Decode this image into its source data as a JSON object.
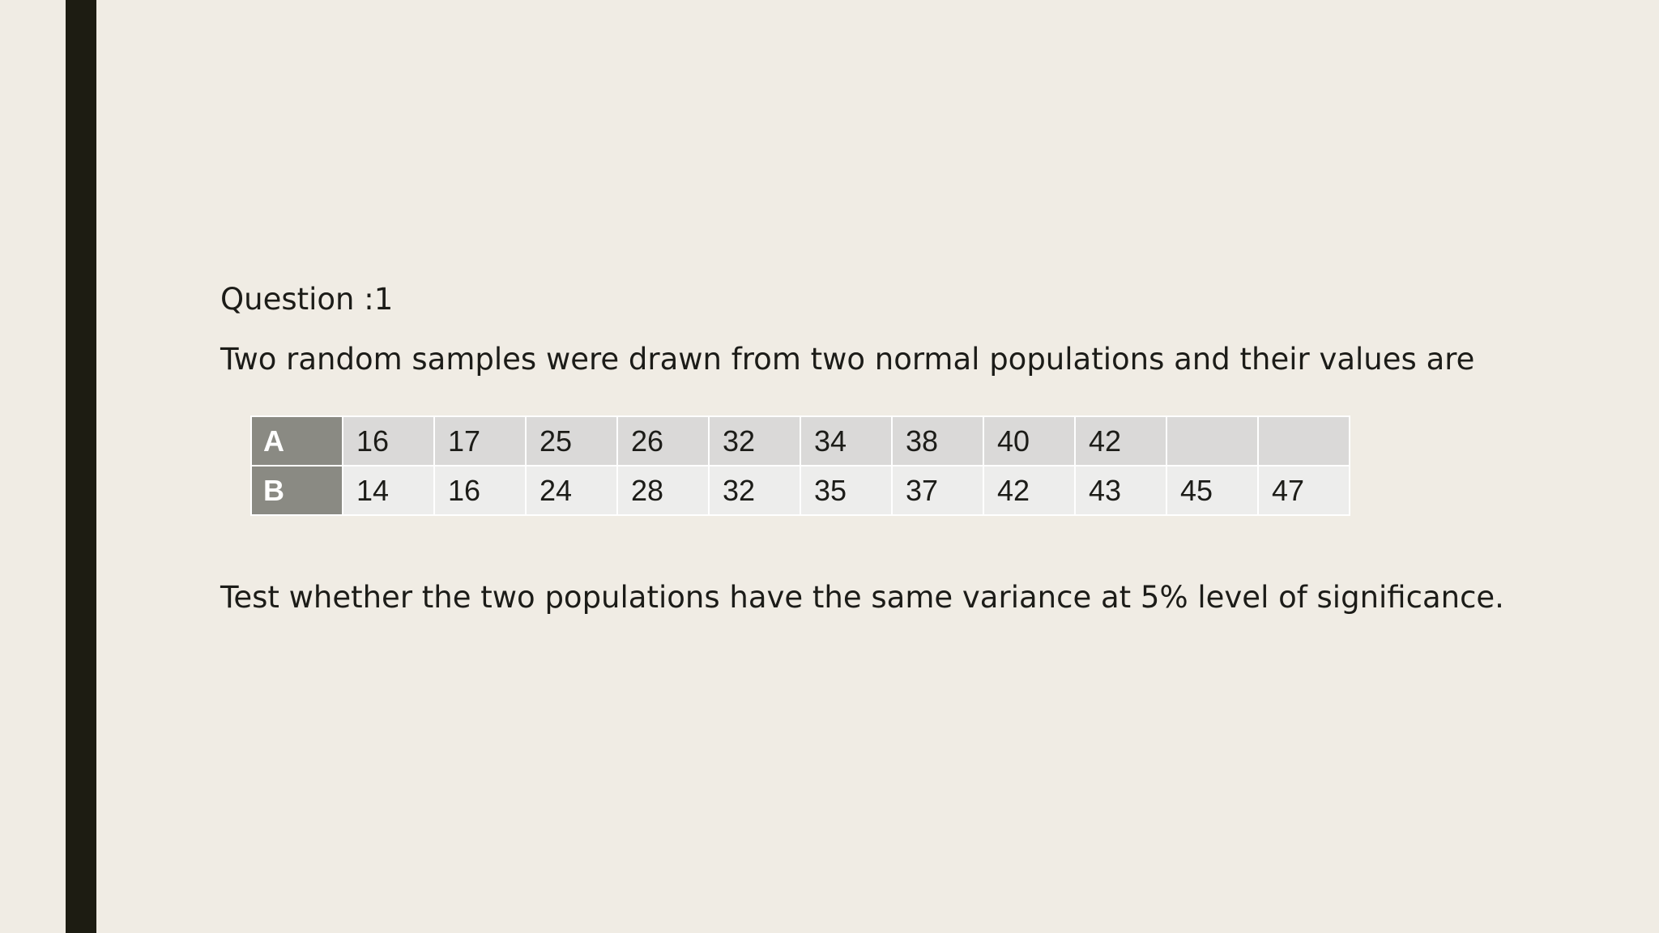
{
  "slide": {
    "question_title": "Question :1",
    "intro": "Two random samples were drawn from two normal populations and their values are",
    "table": {
      "rows": [
        {
          "label": "A",
          "values": [
            "16",
            "17",
            "25",
            "26",
            "32",
            "34",
            "38",
            "40",
            "42",
            "",
            ""
          ]
        },
        {
          "label": "B",
          "values": [
            "14",
            "16",
            "24",
            "28",
            "32",
            "35",
            "37",
            "42",
            "43",
            "45",
            "47"
          ]
        }
      ]
    },
    "test_statement": "Test whether the two populations have the same variance at 5% level of significance."
  }
}
